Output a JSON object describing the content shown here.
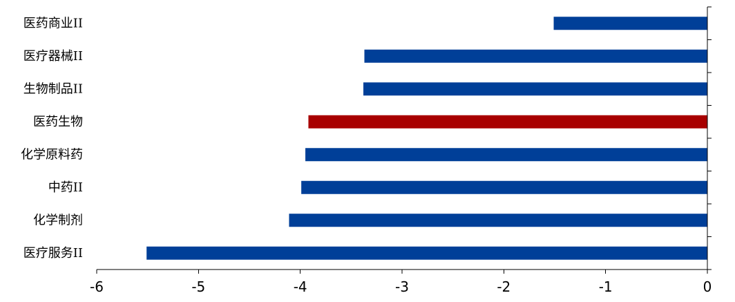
{
  "chart_data": {
    "type": "bar",
    "orientation": "horizontal",
    "categories": [
      "医药商业II",
      "医疗器械II",
      "生物制品II",
      "医药生物",
      "化学原料药",
      "中药II",
      "化学制剂",
      "医疗服务II"
    ],
    "values": [
      -1.51,
      -3.37,
      -3.38,
      -3.92,
      -3.95,
      -3.99,
      -4.11,
      -5.51
    ],
    "highlight_category": "医药生物",
    "xlim": [
      -6,
      0
    ],
    "x_ticks": [
      -6,
      -5,
      -4,
      -3,
      -2,
      -1,
      0
    ],
    "x_tick_labels": [
      "-6",
      "-5",
      "-4",
      "-3",
      "-2",
      "-1",
      "0"
    ],
    "grid": false,
    "legend": "none",
    "title": "",
    "xlabel": "",
    "ylabel": "",
    "colors": {
      "bar": "#003f98",
      "highlight": "#a80000",
      "axis": "#000000"
    }
  }
}
